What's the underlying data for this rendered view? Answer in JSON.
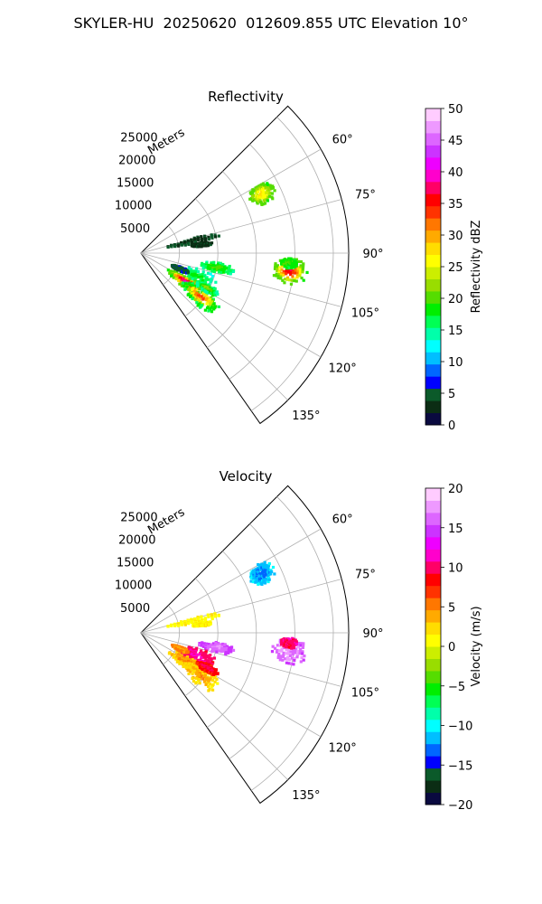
{
  "figure": {
    "title": "SKYLER-HU  20250620  012609.855 UTC Elevation 10°"
  },
  "colors": {
    "grid": "#b0b0b0",
    "frame": "#000000"
  },
  "chart_data": [
    {
      "type": "polar_ppi",
      "title": "Reflectivity",
      "range_label": "Meters",
      "range_ticks": [
        5000,
        10000,
        15000,
        20000,
        25000
      ],
      "range_tick_labels": [
        "5000",
        "10000",
        "15000",
        "20000",
        "25000"
      ],
      "rmax": 27000,
      "azimuth_range_deg": [
        45,
        145
      ],
      "azimuth_ticks_deg": [
        60,
        75,
        90,
        105,
        120,
        135
      ],
      "azimuth_tick_labels": [
        "60°",
        "75°",
        "90°",
        "105°",
        "120°",
        "135°"
      ],
      "grid": true,
      "colorbar": {
        "label": "Reflectivity dBZ",
        "vmin": 0,
        "vmax": 50,
        "ticks": [
          0,
          5,
          10,
          15,
          20,
          25,
          30,
          35,
          40,
          45,
          50
        ],
        "tick_labels": [
          "0",
          "5",
          "10",
          "15",
          "20",
          "25",
          "30",
          "35",
          "40",
          "45",
          "50"
        ],
        "colormap": [
          "#0a0a40",
          "#0b2d14",
          "#0b5a2a",
          "#0000ff",
          "#0066ff",
          "#00bfff",
          "#00ffff",
          "#00ffaa",
          "#00ff55",
          "#00ee00",
          "#55dd00",
          "#99dd00",
          "#ccee00",
          "#ffff00",
          "#ffdd00",
          "#ffaa00",
          "#ff7700",
          "#ff3300",
          "#ff0000",
          "#ff0066",
          "#ff00cc",
          "#ee00ff",
          "#cc33ff",
          "#dd66ff",
          "#ee99ff",
          "#ffccff"
        ]
      },
      "echoes": [
        {
          "az": 64,
          "r": 17500,
          "rw": 900,
          "aw": 4.5,
          "value": 20,
          "core": 27
        },
        {
          "az": 77,
          "r": 7000,
          "rw": 1800,
          "aw": 3,
          "value": 4,
          "core": 3
        },
        {
          "az": 82,
          "r": 8000,
          "rw": 700,
          "aw": 2,
          "value": 3,
          "core": 3
        },
        {
          "az": 97,
          "r": 19500,
          "rw": 1200,
          "aw": 5,
          "value": 20,
          "core": 36
        },
        {
          "az": 94,
          "r": 19300,
          "rw": 600,
          "aw": 2,
          "value": 18,
          "core": 20
        },
        {
          "az": 101,
          "r": 10000,
          "rw": 1200,
          "aw": 4,
          "value": 16,
          "core": 20
        },
        {
          "az": 113,
          "r": 8000,
          "rw": 1300,
          "aw": 8,
          "value": 14,
          "core": 18
        },
        {
          "az": 123,
          "r": 7000,
          "rw": 1500,
          "aw": 6,
          "value": 20,
          "core": 40
        },
        {
          "az": 126,
          "r": 9500,
          "rw": 1500,
          "aw": 7,
          "value": 17,
          "core": 33
        },
        {
          "az": 118,
          "r": 9800,
          "rw": 800,
          "aw": 3,
          "value": 15,
          "core": 22
        },
        {
          "az": 112,
          "r": 5500,
          "rw": 600,
          "aw": 3,
          "value": 5,
          "core": 5
        }
      ]
    },
    {
      "type": "polar_ppi",
      "title": "Velocity",
      "range_label": "Meters",
      "range_ticks": [
        5000,
        10000,
        15000,
        20000,
        25000
      ],
      "range_tick_labels": [
        "5000",
        "10000",
        "15000",
        "20000",
        "25000"
      ],
      "rmax": 27000,
      "azimuth_range_deg": [
        45,
        145
      ],
      "azimuth_ticks_deg": [
        60,
        75,
        90,
        105,
        120,
        135
      ],
      "azimuth_tick_labels": [
        "60°",
        "75°",
        "90°",
        "105°",
        "120°",
        "135°"
      ],
      "grid": true,
      "colorbar": {
        "label": "Velocity (m/s)",
        "vmin": -20,
        "vmax": 20,
        "ticks": [
          -20,
          -15,
          -10,
          -5,
          0,
          5,
          10,
          15,
          20
        ],
        "tick_labels": [
          "−20",
          "−15",
          "−10",
          "−5",
          "0",
          "5",
          "10",
          "15",
          "20"
        ],
        "colormap": [
          "#0a0a40",
          "#0b2d14",
          "#0b5a2a",
          "#0000ff",
          "#0066ff",
          "#00bfff",
          "#00ffff",
          "#00ffaa",
          "#00ff55",
          "#00ee00",
          "#55dd00",
          "#99dd00",
          "#ccee00",
          "#ffff00",
          "#ffdd00",
          "#ffaa00",
          "#ff7700",
          "#ff3300",
          "#ff0000",
          "#ff0066",
          "#ff00cc",
          "#ee00ff",
          "#cc33ff",
          "#dd66ff",
          "#ee99ff",
          "#ffccff"
        ]
      },
      "echoes": [
        {
          "az": 64,
          "r": 17500,
          "rw": 900,
          "aw": 4.5,
          "value": -11,
          "core": -13
        },
        {
          "az": 77,
          "r": 7000,
          "rw": 1800,
          "aw": 3,
          "value": 1,
          "core": 1
        },
        {
          "az": 82,
          "r": 8000,
          "rw": 700,
          "aw": 2,
          "value": 1,
          "core": 1
        },
        {
          "az": 97,
          "r": 19500,
          "rw": 1200,
          "aw": 5,
          "value": 16,
          "core": 17
        },
        {
          "az": 94,
          "r": 19300,
          "rw": 600,
          "aw": 2,
          "value": 10,
          "core": 10
        },
        {
          "az": 101,
          "r": 10000,
          "rw": 1200,
          "aw": 4,
          "value": 15,
          "core": 17
        },
        {
          "az": 113,
          "r": 8000,
          "rw": 1300,
          "aw": 8,
          "value": 10,
          "core": 11
        },
        {
          "az": 123,
          "r": 7000,
          "rw": 1500,
          "aw": 6,
          "value": 3,
          "core": 5
        },
        {
          "az": 126,
          "r": 9500,
          "rw": 1500,
          "aw": 7,
          "value": 2,
          "core": 4
        },
        {
          "az": 118,
          "r": 9800,
          "rw": 800,
          "aw": 3,
          "value": 8,
          "core": 10
        },
        {
          "az": 112,
          "r": 5500,
          "rw": 600,
          "aw": 3,
          "value": 5,
          "core": 4
        }
      ]
    }
  ]
}
